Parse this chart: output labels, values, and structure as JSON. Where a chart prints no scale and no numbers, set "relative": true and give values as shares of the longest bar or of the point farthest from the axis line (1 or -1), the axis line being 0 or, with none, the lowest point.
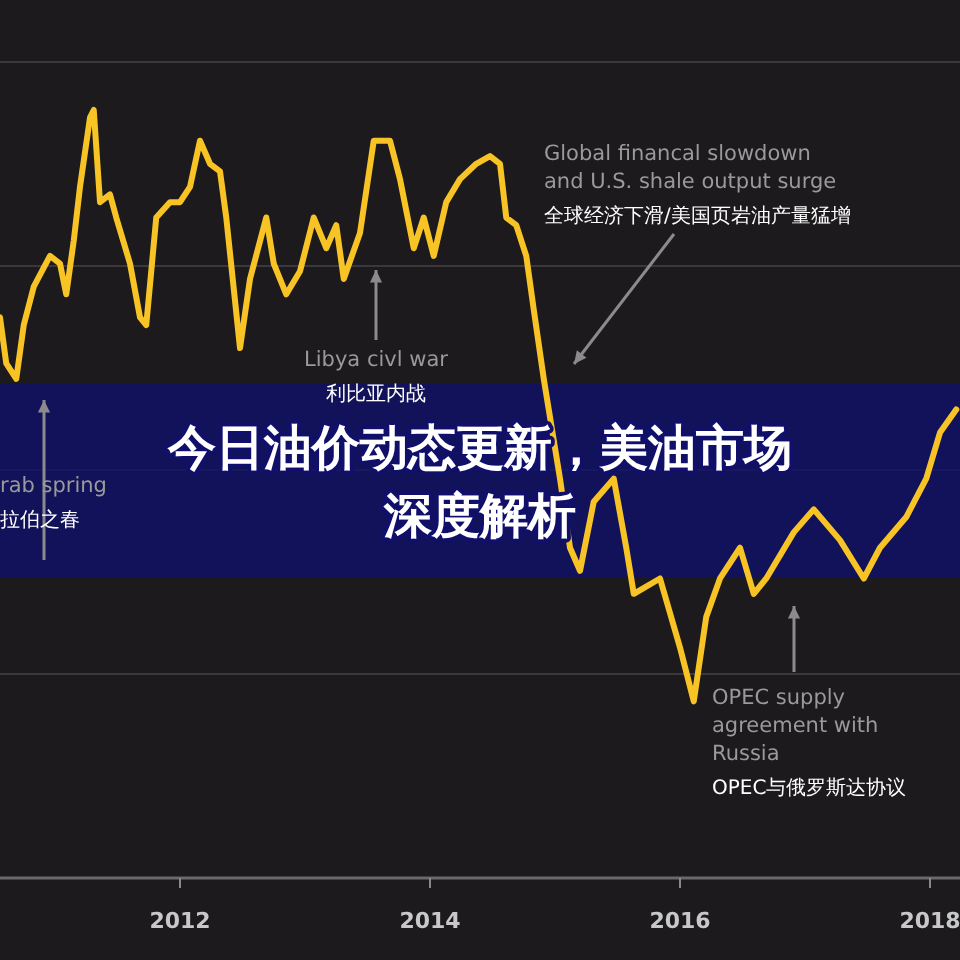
{
  "chart_data": {
    "type": "line",
    "title": "今日油价动态更新，美油市场深度解析",
    "relative": true,
    "grid": "y",
    "marker": "none",
    "line_style": "solid",
    "tick_labels": "x",
    "xlim": [
      2010.56,
      2018.24
    ],
    "xticks": [
      2012,
      2014,
      2016,
      2018
    ],
    "x": [
      2010.56,
      2010.61,
      2010.69,
      2010.75,
      2010.83,
      2010.96,
      2011.04,
      2011.09,
      2011.15,
      2011.2,
      2011.28,
      2011.31,
      2011.36,
      2011.44,
      2011.49,
      2011.6,
      2011.68,
      2011.73,
      2011.81,
      2011.92,
      2012.0,
      2012.08,
      2012.16,
      2012.24,
      2012.32,
      2012.37,
      2012.48,
      2012.56,
      2012.69,
      2012.75,
      2012.85,
      2012.96,
      2013.07,
      2013.17,
      2013.25,
      2013.31,
      2013.44,
      2013.55,
      2013.68,
      2013.76,
      2013.87,
      2013.95,
      2014.03,
      2014.13,
      2014.24,
      2014.37,
      2014.48,
      2014.56,
      2014.61,
      2014.69,
      2014.77,
      2014.83,
      2014.91,
      2015.04,
      2015.12,
      2015.2,
      2015.31,
      2015.47,
      2015.57,
      2015.63,
      2015.84,
      2016.0,
      2016.11,
      2016.21,
      2016.32,
      2016.48,
      2016.59,
      2016.69,
      2016.91,
      2017.07,
      2017.28,
      2017.47,
      2017.6,
      2017.81,
      2017.97,
      2018.08,
      2018.21
    ],
    "series": [
      {
        "color": "#f7c325",
        "values": [
          0.73,
          0.67,
          0.65,
          0.72,
          0.77,
          0.81,
          0.8,
          0.76,
          0.83,
          0.9,
          0.99,
          1.0,
          0.88,
          0.89,
          0.86,
          0.8,
          0.73,
          0.72,
          0.86,
          0.88,
          0.88,
          0.9,
          0.96,
          0.93,
          0.92,
          0.86,
          0.69,
          0.78,
          0.86,
          0.8,
          0.76,
          0.79,
          0.86,
          0.82,
          0.85,
          0.78,
          0.84,
          0.96,
          0.96,
          0.91,
          0.82,
          0.86,
          0.81,
          0.88,
          0.91,
          0.93,
          0.94,
          0.93,
          0.86,
          0.85,
          0.81,
          0.74,
          0.65,
          0.52,
          0.43,
          0.4,
          0.49,
          0.52,
          0.43,
          0.37,
          0.39,
          0.3,
          0.23,
          0.34,
          0.39,
          0.43,
          0.37,
          0.39,
          0.45,
          0.48,
          0.44,
          0.39,
          0.43,
          0.47,
          0.52,
          0.58,
          0.61
        ]
      }
    ],
    "annotations": [
      "rab spring\n拉伯之春",
      "Libya civl war\n利比亚内战",
      "Global financal slowdown\nand U.S. shale output surge\n全球经济下滑/美国页岩油产量猛增",
      "OPEC supply\nagreement with\nRussia\nOPEC与俄罗斯达协议"
    ]
  }
}
